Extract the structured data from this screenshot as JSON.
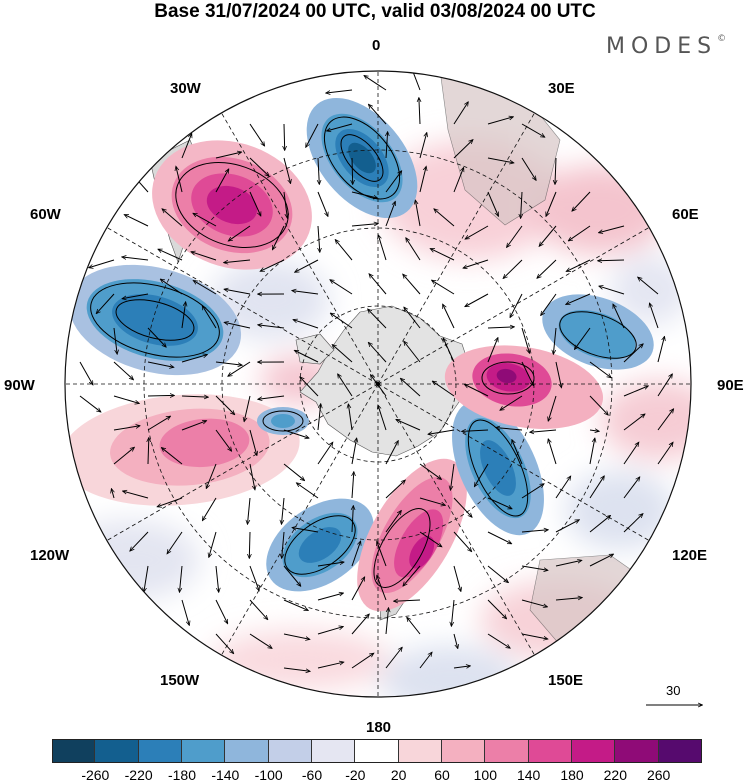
{
  "title": "Base 31/07/2024 00 UTC, valid 03/08/2024 00 UTC",
  "brand": "MODES",
  "brand_mark": "©",
  "longitude_labels": [
    "0",
    "30E",
    "60E",
    "90E",
    "120E",
    "150E",
    "180",
    "150W",
    "120W",
    "90W",
    "60W",
    "30W"
  ],
  "reference_vector": {
    "value": "30"
  },
  "colorbar": {
    "labels": [
      "-260",
      "-220",
      "-180",
      "-140",
      "-100",
      "-60",
      "-20",
      "20",
      "60",
      "100",
      "140",
      "180",
      "220",
      "260"
    ],
    "colors": [
      "#10405e",
      "#135f8f",
      "#2c7fb8",
      "#4f9dcb",
      "#8fb6dc",
      "#c3cfe8",
      "#e5e6f2",
      "#ffffff",
      "#f8d6da",
      "#f4b0c0",
      "#ec7fa8",
      "#df4a96",
      "#c41b87",
      "#8f0b77",
      "#560a6e"
    ]
  },
  "colors": {
    "land": "#b9b9b9",
    "coast": "#555555",
    "grid": "#111111"
  }
}
